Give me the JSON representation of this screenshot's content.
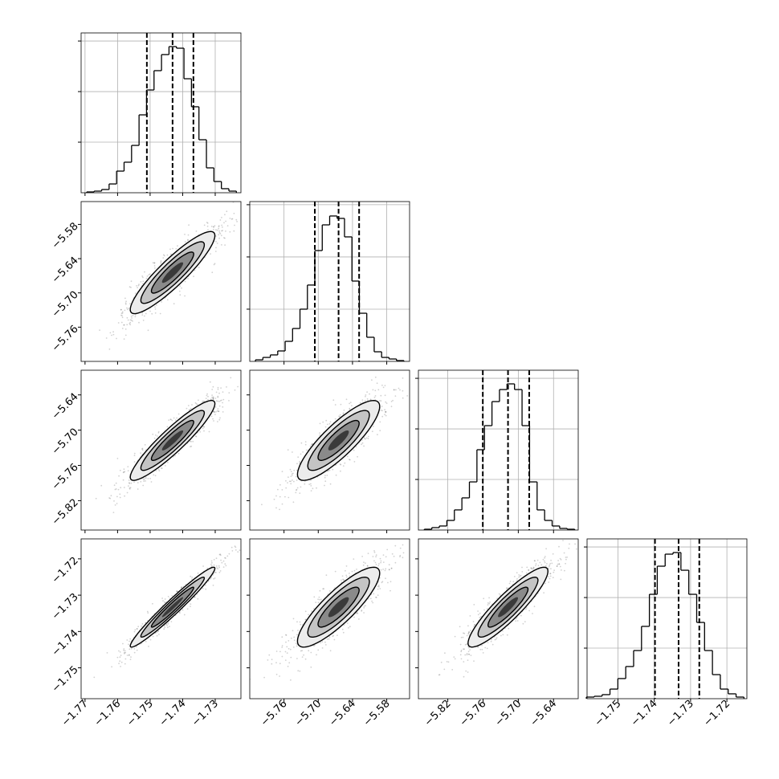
{
  "chart_data": {
    "type": "corner",
    "params": [
      {
        "lim": [
          -1.7712,
          -1.7221
        ],
        "ticks": [
          {
            "value": -1.77,
            "label": "−1.77"
          },
          {
            "value": -1.76,
            "label": "−1.76"
          },
          {
            "value": -1.75,
            "label": "−1.75"
          },
          {
            "value": -1.74,
            "label": "−1.74"
          },
          {
            "value": -1.73,
            "label": "−1.73"
          }
        ],
        "hist": {
          "bins": [
            -1.7695,
            -1.7672,
            -1.7649,
            -1.7626,
            -1.7603,
            -1.758,
            -1.7557,
            -1.7534,
            -1.7511,
            -1.7488,
            -1.7465,
            -1.7442,
            -1.7419,
            -1.7396,
            -1.7373,
            -1.735,
            -1.7327,
            -1.7304,
            -1.7281,
            -1.7258,
            -1.7235
          ],
          "values": [
            8,
            16,
            32,
            87,
            214,
            302,
            468,
            770,
            1016,
            1207,
            1366,
            1445,
            1429,
            1127,
            850,
            524,
            246,
            111,
            40,
            16
          ],
          "ylim": [
            0,
            1580
          ],
          "yticks": [
            500,
            1000,
            1500
          ]
        },
        "quantiles": [
          -1.751,
          -1.7431,
          -1.7367
        ]
      },
      {
        "lim": [
          -5.82,
          -5.54
        ],
        "ticks": [
          {
            "value": -5.76,
            "label": "−5.76"
          },
          {
            "value": -5.7,
            "label": "−5.70"
          },
          {
            "value": -5.64,
            "label": "−5.64"
          },
          {
            "value": -5.58,
            "label": "−5.58"
          }
        ],
        "hist": {
          "bins": [
            -5.81,
            -5.797,
            -5.784,
            -5.771,
            -5.758,
            -5.745,
            -5.732,
            -5.719,
            -5.706,
            -5.693,
            -5.68,
            -5.667,
            -5.654,
            -5.641,
            -5.628,
            -5.615,
            -5.602,
            -5.589,
            -5.576,
            -5.563,
            -5.55
          ],
          "values": [
            15,
            38,
            62,
            100,
            192,
            315,
            500,
            731,
            1061,
            1307,
            1392,
            1369,
            1192,
            769,
            461,
            231,
            92,
            38,
            23,
            8
          ],
          "ylim": [
            0,
            1530
          ],
          "yticks": [
            500,
            1000,
            1500
          ]
        },
        "quantiles": [
          -5.706,
          -5.6644,
          -5.6284
        ]
      },
      {
        "lim": [
          -5.87,
          -5.598
        ],
        "ticks": [
          {
            "value": -5.82,
            "label": "−5.82"
          },
          {
            "value": -5.76,
            "label": "−5.76"
          },
          {
            "value": -5.7,
            "label": "−5.70"
          },
          {
            "value": -5.64,
            "label": "−5.64"
          }
        ],
        "hist": {
          "bins": [
            -5.86,
            -5.8472,
            -5.8344,
            -5.8216,
            -5.8088,
            -5.796,
            -5.7832,
            -5.7704,
            -5.7576,
            -5.7448,
            -5.732,
            -5.7192,
            -5.7064,
            -5.6936,
            -5.6808,
            -5.668,
            -5.6552,
            -5.6424,
            -5.6296,
            -5.6168,
            -5.604
          ],
          "values": [
            8,
            24,
            40,
            95,
            199,
            318,
            476,
            794,
            1032,
            1270,
            1389,
            1445,
            1389,
            1032,
            476,
            199,
            95,
            40,
            16,
            8
          ],
          "ylim": [
            0,
            1580
          ],
          "yticks": [
            500,
            1000,
            1500
          ]
        },
        "quantiles": [
          -5.7604,
          -5.7175,
          -5.6814
        ]
      },
      {
        "lim": [
          -1.7585,
          -1.7145
        ],
        "ticks": [
          {
            "value": -1.75,
            "label": "−1.75"
          },
          {
            "value": -1.74,
            "label": "−1.74"
          },
          {
            "value": -1.73,
            "label": "−1.73"
          },
          {
            "value": -1.72,
            "label": "−1.72"
          }
        ],
        "hist": {
          "bins": [
            -1.7587,
            -1.75653,
            -1.75436,
            -1.75219,
            -1.75002,
            -1.74785,
            -1.74568,
            -1.74351,
            -1.74134,
            -1.73917,
            -1.737,
            -1.73483,
            -1.73266,
            -1.73049,
            -1.72832,
            -1.72615,
            -1.72398,
            -1.72181,
            -1.71964,
            -1.71747,
            -1.7153
          ],
          "values": [
            16,
            24,
            40,
            95,
            199,
            318,
            476,
            715,
            1032,
            1310,
            1429,
            1445,
            1270,
            1032,
            754,
            476,
            238,
            95,
            48,
            16
          ],
          "ylim": [
            0,
            1580
          ],
          "yticks": [
            500,
            1000,
            1500
          ]
        },
        "quantiles": [
          -1.7398,
          -1.7333,
          -1.7276
        ]
      }
    ],
    "panels": [
      {
        "center": [
          -1.7431,
          -5.6644
        ],
        "sd": [
          0.0065,
          0.036
        ],
        "corr": 0.9
      },
      {
        "center": [
          -1.7431,
          -5.7175
        ],
        "sd": [
          0.0065,
          0.034
        ],
        "corr": 0.92
      },
      {
        "center": [
          -5.6644,
          -5.7175
        ],
        "sd": [
          0.036,
          0.034
        ],
        "corr": 0.85
      },
      {
        "center": [
          -1.7431,
          -1.7333
        ],
        "sd": [
          0.0065,
          0.0055
        ],
        "corr": 0.97
      },
      {
        "center": [
          -5.6644,
          -1.7333
        ],
        "sd": [
          0.036,
          0.0055
        ],
        "corr": 0.85
      },
      {
        "center": [
          -5.7175,
          -1.7333
        ],
        "sd": [
          0.034,
          0.0055
        ],
        "corr": 0.9
      }
    ]
  }
}
